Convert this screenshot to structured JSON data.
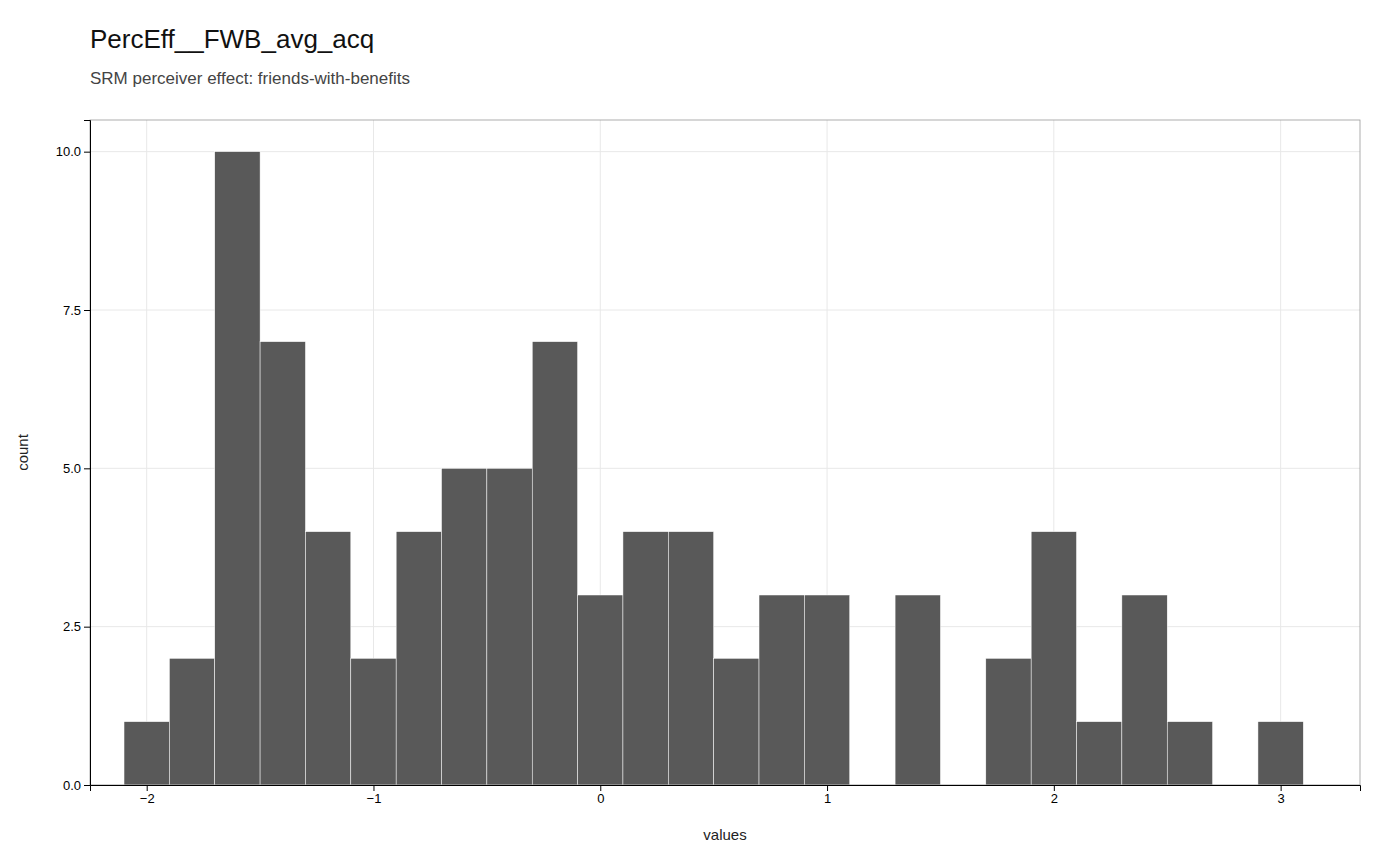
{
  "chart_data": {
    "type": "histogram",
    "title": "PercEff__FWB_avg_acq",
    "subtitle": "SRM perceiver effect: friends-with-benefits",
    "x_label": "values",
    "y_label": "count",
    "color": "#595959",
    "bins": [
      -2.1,
      -1.9,
      -1.7,
      -1.5,
      -1.3,
      -1.1,
      -0.9,
      -0.7,
      -0.5,
      -0.3,
      -0.1,
      0.1,
      0.3,
      0.5,
      0.7,
      0.9,
      1.1,
      1.3,
      1.5,
      1.7,
      1.9,
      2.1,
      2.3,
      2.5,
      2.7,
      2.9,
      3.1,
      3.3
    ],
    "values": [
      1,
      2,
      10,
      7,
      4,
      2,
      4,
      5,
      5,
      7,
      3,
      4,
      4,
      2,
      3,
      3,
      0,
      3,
      0,
      2,
      4,
      1,
      3,
      1,
      0,
      1,
      0
    ],
    "xlim": [
      -2.25,
      3.35
    ],
    "ylim": [
      0,
      10.5
    ],
    "xticks": [
      {
        "value": -2,
        "label": "−2"
      },
      {
        "value": -1,
        "label": "−1"
      },
      0,
      1,
      2,
      3
    ],
    "yticks": [
      {
        "value": 0,
        "label": "0.0"
      },
      2.5,
      {
        "value": 5,
        "label": "5.0"
      },
      7.5,
      {
        "value": 10,
        "label": "10.0"
      }
    ],
    "grid": true
  }
}
